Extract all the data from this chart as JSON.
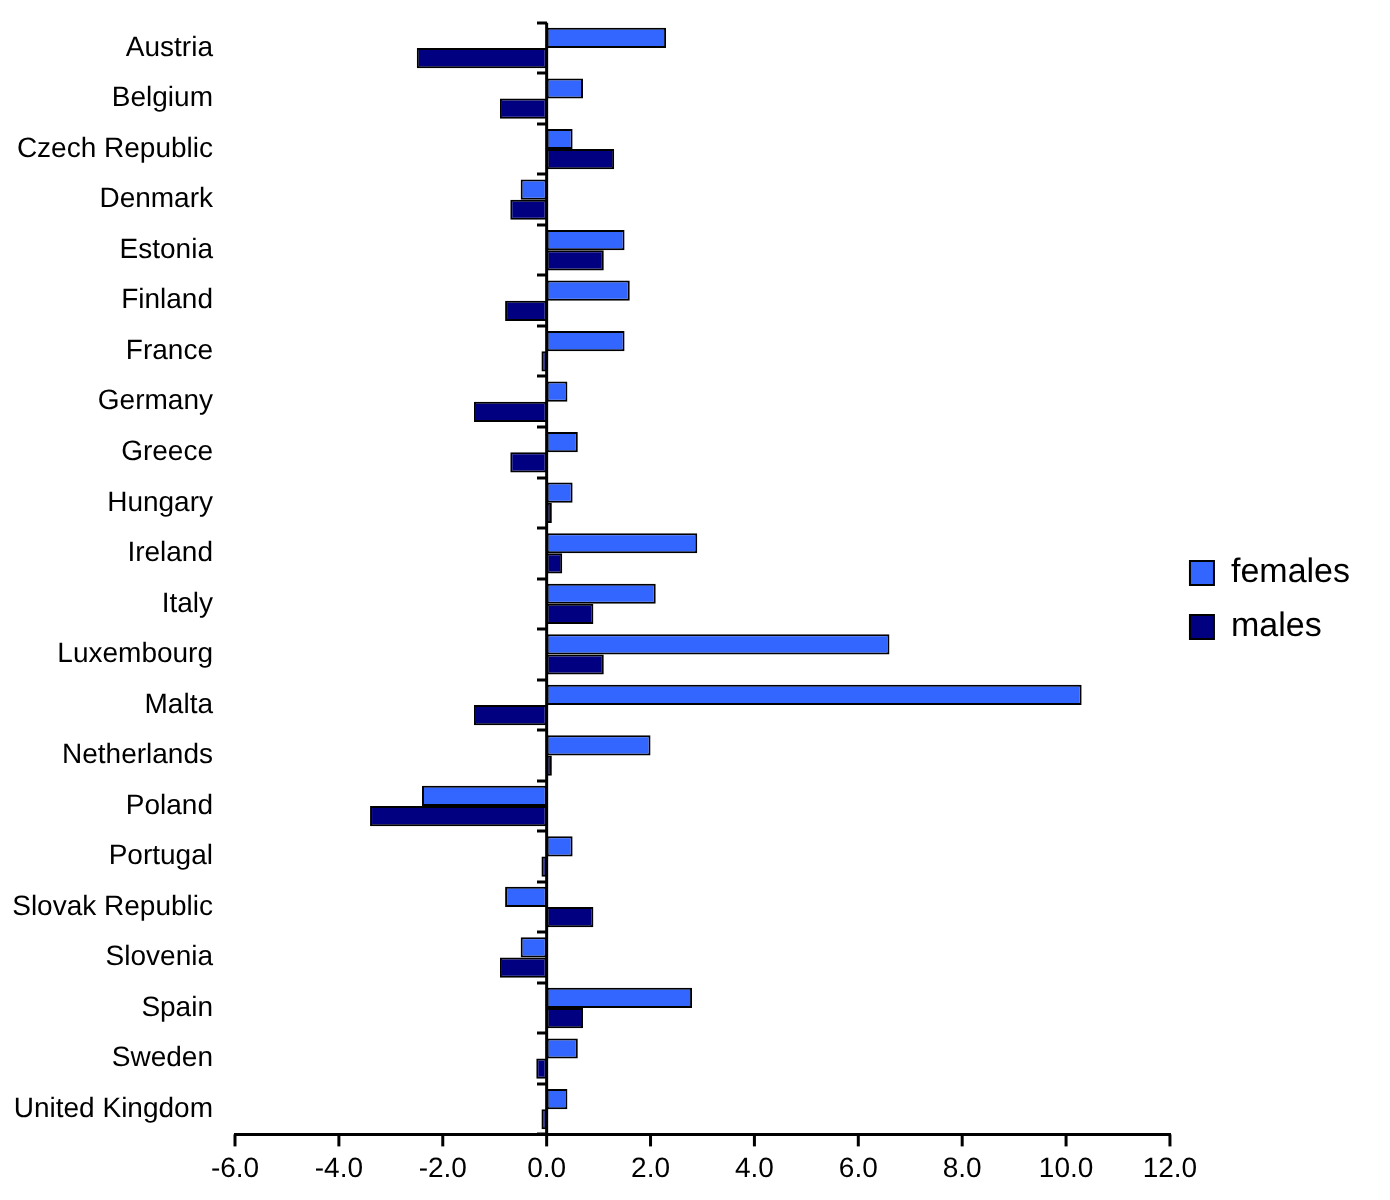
{
  "chart_data": {
    "type": "bar",
    "orientation": "horizontal",
    "categories": [
      "Austria",
      "Belgium",
      "Czech Republic",
      "Denmark",
      "Estonia",
      "Finland",
      "France",
      "Germany",
      "Greece",
      "Hungary",
      "Ireland",
      "Italy",
      "Luxembourg",
      "Malta",
      "Netherlands",
      "Poland",
      "Portugal",
      "Slovak Republic",
      "Slovenia",
      "Spain",
      "Sweden",
      "United Kingdom"
    ],
    "series": [
      {
        "name": "females",
        "color": "#3366ff",
        "values": [
          2.3,
          0.7,
          0.5,
          -0.5,
          1.5,
          1.6,
          1.5,
          0.4,
          0.6,
          0.5,
          2.9,
          2.1,
          6.6,
          10.3,
          2.0,
          -2.4,
          0.5,
          -0.8,
          -0.5,
          2.8,
          0.6,
          0.4
        ]
      },
      {
        "name": "males",
        "color": "#000080",
        "values": [
          -2.5,
          -0.9,
          1.3,
          -0.7,
          1.1,
          -0.8,
          -0.1,
          -1.4,
          -0.7,
          0.1,
          0.3,
          0.9,
          1.1,
          -1.4,
          0.1,
          -3.4,
          -0.1,
          0.9,
          -0.9,
          0.7,
          -0.2,
          -0.1
        ]
      }
    ],
    "xlim": [
      -6,
      12
    ],
    "xticks": [
      {
        "value": -6,
        "label": "-6.0"
      },
      {
        "value": -4,
        "label": "-4.0"
      },
      {
        "value": -2,
        "label": "-2.0"
      },
      {
        "value": 0,
        "label": "0.0"
      },
      {
        "value": 2,
        "label": "2.0"
      },
      {
        "value": 4,
        "label": "4.0"
      },
      {
        "value": 6,
        "label": "6.0"
      },
      {
        "value": 8,
        "label": "8.0"
      },
      {
        "value": 10,
        "label": "10.0"
      },
      {
        "value": 12,
        "label": "12.0"
      }
    ],
    "ref_lines": [
      {
        "axis": "x",
        "value": 0,
        "color": "#000000"
      }
    ],
    "grid": false,
    "legend": "right"
  }
}
